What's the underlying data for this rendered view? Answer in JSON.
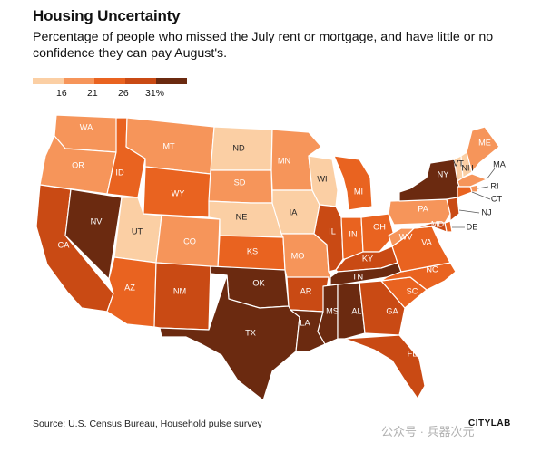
{
  "title": "Housing Uncertainty",
  "subtitle": "Percentage of people who missed the July rent or mortgage, and have little or no confidence they can pay August's.",
  "legend": {
    "labels": [
      "16",
      "21",
      "26",
      "31%"
    ],
    "colors": [
      "#fbcfa4",
      "#f6955a",
      "#e96320",
      "#c94a14",
      "#6b2a10"
    ]
  },
  "states": [
    {
      "abbr": "WA",
      "bin": 1
    },
    {
      "abbr": "OR",
      "bin": 1
    },
    {
      "abbr": "CA",
      "bin": 3
    },
    {
      "abbr": "NV",
      "bin": 4
    },
    {
      "abbr": "ID",
      "bin": 2
    },
    {
      "abbr": "UT",
      "bin": 0
    },
    {
      "abbr": "AZ",
      "bin": 2
    },
    {
      "abbr": "MT",
      "bin": 1
    },
    {
      "abbr": "WY",
      "bin": 2
    },
    {
      "abbr": "CO",
      "bin": 1
    },
    {
      "abbr": "NM",
      "bin": 3
    },
    {
      "abbr": "ND",
      "bin": 0
    },
    {
      "abbr": "SD",
      "bin": 1
    },
    {
      "abbr": "NE",
      "bin": 0
    },
    {
      "abbr": "KS",
      "bin": 2
    },
    {
      "abbr": "OK",
      "bin": 4
    },
    {
      "abbr": "TX",
      "bin": 4
    },
    {
      "abbr": "MN",
      "bin": 1
    },
    {
      "abbr": "IA",
      "bin": 0
    },
    {
      "abbr": "MO",
      "bin": 1
    },
    {
      "abbr": "AR",
      "bin": 3
    },
    {
      "abbr": "LA",
      "bin": 4
    },
    {
      "abbr": "WI",
      "bin": 0
    },
    {
      "abbr": "IL",
      "bin": 3
    },
    {
      "abbr": "MI",
      "bin": 2
    },
    {
      "abbr": "IN",
      "bin": 2
    },
    {
      "abbr": "OH",
      "bin": 2
    },
    {
      "abbr": "KY",
      "bin": 3
    },
    {
      "abbr": "TN",
      "bin": 4
    },
    {
      "abbr": "MS",
      "bin": 4
    },
    {
      "abbr": "AL",
      "bin": 4
    },
    {
      "abbr": "GA",
      "bin": 3
    },
    {
      "abbr": "FL",
      "bin": 3
    },
    {
      "abbr": "SC",
      "bin": 2
    },
    {
      "abbr": "NC",
      "bin": 2
    },
    {
      "abbr": "VA",
      "bin": 2
    },
    {
      "abbr": "WV",
      "bin": 1
    },
    {
      "abbr": "PA",
      "bin": 1
    },
    {
      "abbr": "NY",
      "bin": 4
    },
    {
      "abbr": "VT",
      "bin": 0
    },
    {
      "abbr": "NH",
      "bin": 0
    },
    {
      "abbr": "ME",
      "bin": 1
    },
    {
      "abbr": "MA",
      "bin": 1
    },
    {
      "abbr": "RI",
      "bin": 1
    },
    {
      "abbr": "CT",
      "bin": 2
    },
    {
      "abbr": "NJ",
      "bin": 3
    },
    {
      "abbr": "DE",
      "bin": 2
    },
    {
      "abbr": "MD",
      "bin": 3
    }
  ],
  "source": "Source: U.S. Census Bureau, Household pulse survey",
  "brand": "CITYLAB",
  "watermark": "公众号 · 兵器次元"
}
